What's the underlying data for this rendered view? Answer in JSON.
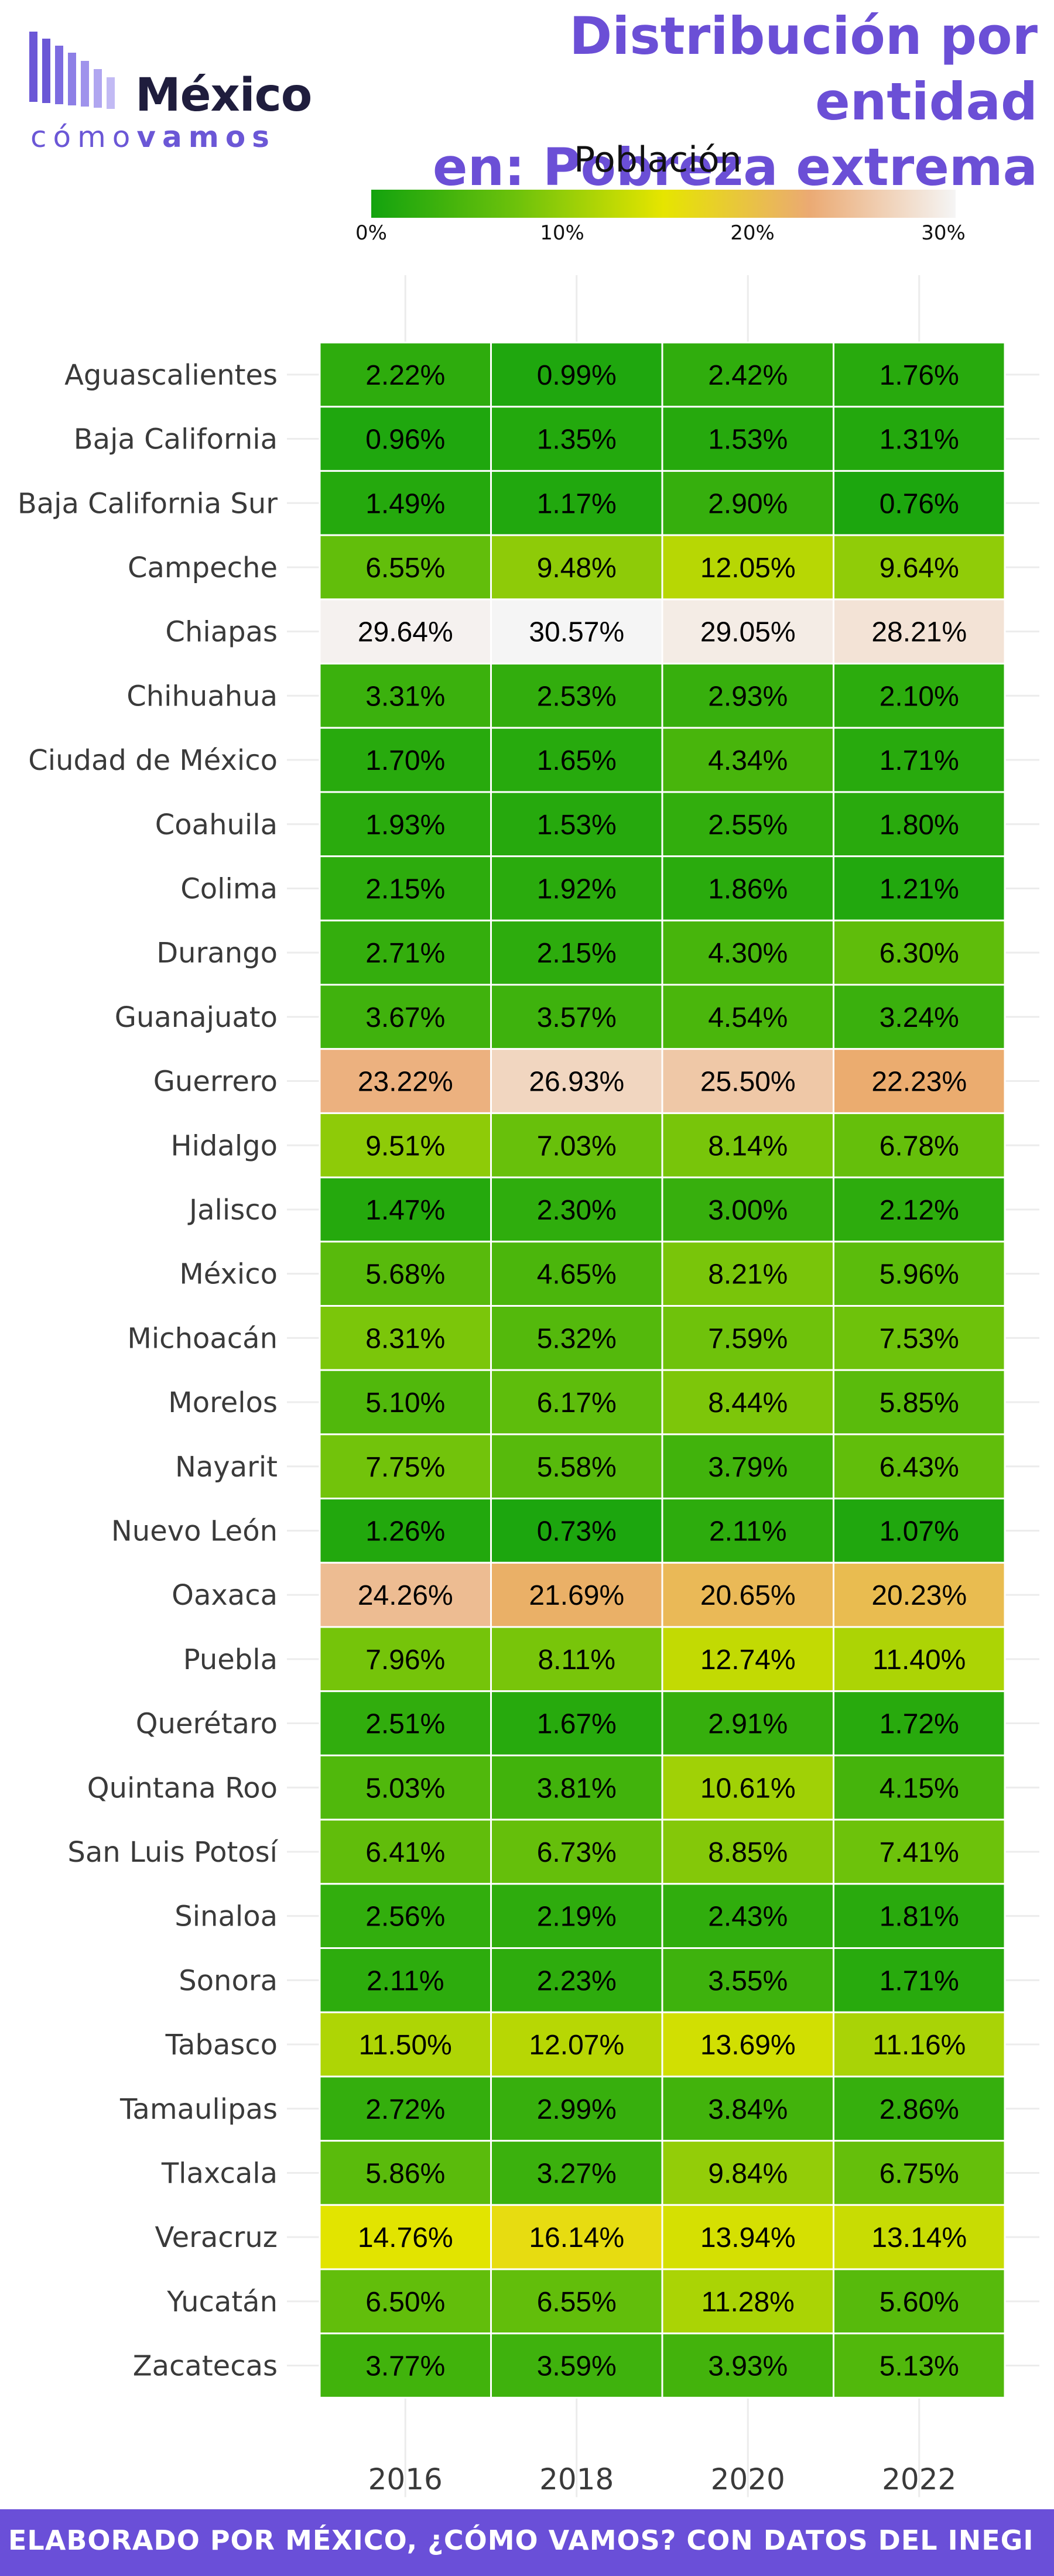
{
  "logo": {
    "word": "México",
    "tag_a": "cómo",
    "tag_b": "vamos"
  },
  "title": {
    "line1": "Distribución por entidad",
    "line2": "en: Pobreza extrema"
  },
  "legend": {
    "title": "Población",
    "ticks": [
      "0%",
      "10%",
      "20%",
      "30%"
    ],
    "domain": [
      0,
      30
    ]
  },
  "colors": {
    "title": "#6b4fd6",
    "footer": "#6a4fd8",
    "scale": [
      "#13a30e",
      "#6ec20b",
      "#e6e500",
      "#ebaa73",
      "#f5f5f5"
    ]
  },
  "footer": {
    "text": "ELABORADO POR MÉXICO, ¿CÓMO VAMOS? CON DATOS DEL INEGI"
  },
  "chart_data": {
    "type": "heatmap",
    "x": [
      "2016",
      "2018",
      "2020",
      "2022"
    ],
    "y": [
      "Aguascalientes",
      "Baja California",
      "Baja California Sur",
      "Campeche",
      "Chiapas",
      "Chihuahua",
      "Ciudad de México",
      "Coahuila",
      "Colima",
      "Durango",
      "Guanajuato",
      "Guerrero",
      "Hidalgo",
      "Jalisco",
      "México",
      "Michoacán",
      "Morelos",
      "Nayarit",
      "Nuevo León",
      "Oaxaca",
      "Puebla",
      "Querétaro",
      "Quintana Roo",
      "San Luis Potosí",
      "Sinaloa",
      "Sonora",
      "Tabasco",
      "Tamaulipas",
      "Tlaxcala",
      "Veracruz",
      "Yucatán",
      "Zacatecas"
    ],
    "values": [
      [
        2.22,
        0.99,
        2.42,
        1.76
      ],
      [
        0.96,
        1.35,
        1.53,
        1.31
      ],
      [
        1.49,
        1.17,
        2.9,
        0.76
      ],
      [
        6.55,
        9.48,
        12.05,
        9.64
      ],
      [
        29.64,
        30.57,
        29.05,
        28.21
      ],
      [
        3.31,
        2.53,
        2.93,
        2.1
      ],
      [
        1.7,
        1.65,
        4.34,
        1.71
      ],
      [
        1.93,
        1.53,
        2.55,
        1.8
      ],
      [
        2.15,
        1.92,
        1.86,
        1.21
      ],
      [
        2.71,
        2.15,
        4.3,
        6.3
      ],
      [
        3.67,
        3.57,
        4.54,
        3.24
      ],
      [
        23.22,
        26.93,
        25.5,
        22.23
      ],
      [
        9.51,
        7.03,
        8.14,
        6.78
      ],
      [
        1.47,
        2.3,
        3.0,
        2.12
      ],
      [
        5.68,
        4.65,
        8.21,
        5.96
      ],
      [
        8.31,
        5.32,
        7.59,
        7.53
      ],
      [
        5.1,
        6.17,
        8.44,
        5.85
      ],
      [
        7.75,
        5.58,
        3.79,
        6.43
      ],
      [
        1.26,
        0.73,
        2.11,
        1.07
      ],
      [
        24.26,
        21.69,
        20.65,
        20.23
      ],
      [
        7.96,
        8.11,
        12.74,
        11.4
      ],
      [
        2.51,
        1.67,
        2.91,
        1.72
      ],
      [
        5.03,
        3.81,
        10.61,
        4.15
      ],
      [
        6.41,
        6.73,
        8.85,
        7.41
      ],
      [
        2.56,
        2.19,
        2.43,
        1.81
      ],
      [
        2.11,
        2.23,
        3.55,
        1.71
      ],
      [
        11.5,
        12.07,
        13.69,
        11.16
      ],
      [
        2.72,
        2.99,
        3.84,
        2.86
      ],
      [
        5.86,
        3.27,
        9.84,
        6.75
      ],
      [
        14.76,
        16.14,
        13.94,
        13.14
      ],
      [
        6.5,
        6.55,
        11.28,
        5.6
      ],
      [
        3.77,
        3.59,
        3.93,
        5.13
      ]
    ],
    "labels": [
      [
        "2.22%",
        "0.99%",
        "2.42%",
        "1.76%"
      ],
      [
        "0.96%",
        "1.35%",
        "1.53%",
        "1.31%"
      ],
      [
        "1.49%",
        "1.17%",
        "2.90%",
        "0.76%"
      ],
      [
        "6.55%",
        "9.48%",
        "12.05%",
        "9.64%"
      ],
      [
        "29.64%",
        "30.57%",
        "29.05%",
        "28.21%"
      ],
      [
        "3.31%",
        "2.53%",
        "2.93%",
        "2.10%"
      ],
      [
        "1.70%",
        "1.65%",
        "4.34%",
        "1.71%"
      ],
      [
        "1.93%",
        "1.53%",
        "2.55%",
        "1.80%"
      ],
      [
        "2.15%",
        "1.92%",
        "1.86%",
        "1.21%"
      ],
      [
        "2.71%",
        "2.15%",
        "4.30%",
        "6.30%"
      ],
      [
        "3.67%",
        "3.57%",
        "4.54%",
        "3.24%"
      ],
      [
        "23.22%",
        "26.93%",
        "25.50%",
        "22.23%"
      ],
      [
        "9.51%",
        "7.03%",
        "8.14%",
        "6.78%"
      ],
      [
        "1.47%",
        "2.30%",
        "3.00%",
        "2.12%"
      ],
      [
        "5.68%",
        "4.65%",
        "8.21%",
        "5.96%"
      ],
      [
        "8.31%",
        "5.32%",
        "7.59%",
        "7.53%"
      ],
      [
        "5.10%",
        "6.17%",
        "8.44%",
        "5.85%"
      ],
      [
        "7.75%",
        "5.58%",
        "3.79%",
        "6.43%"
      ],
      [
        "1.26%",
        "0.73%",
        "2.11%",
        "1.07%"
      ],
      [
        "24.26%",
        "21.69%",
        "20.65%",
        "20.23%"
      ],
      [
        "7.96%",
        "8.11%",
        "12.74%",
        "11.40%"
      ],
      [
        "2.51%",
        "1.67%",
        "2.91%",
        "1.72%"
      ],
      [
        "5.03%",
        "3.81%",
        "10.61%",
        "4.15%"
      ],
      [
        "6.41%",
        "6.73%",
        "8.85%",
        "7.41%"
      ],
      [
        "2.56%",
        "2.19%",
        "2.43%",
        "1.81%"
      ],
      [
        "2.11%",
        "2.23%",
        "3.55%",
        "1.71%"
      ],
      [
        "11.50%",
        "12.07%",
        "13.69%",
        "11.16%"
      ],
      [
        "2.72%",
        "2.99%",
        "3.84%",
        "2.86%"
      ],
      [
        "5.86%",
        "3.27%",
        "9.84%",
        "6.75%"
      ],
      [
        "14.76%",
        "16.14%",
        "13.94%",
        "13.14%"
      ],
      [
        "6.50%",
        "6.55%",
        "11.28%",
        "5.60%"
      ],
      [
        "3.77%",
        "3.59%",
        "3.93%",
        "5.13%"
      ]
    ],
    "legend_title": "Población",
    "title": "Distribución por entidad en: Pobreza extrema",
    "grid": true,
    "legend_position": "top"
  }
}
